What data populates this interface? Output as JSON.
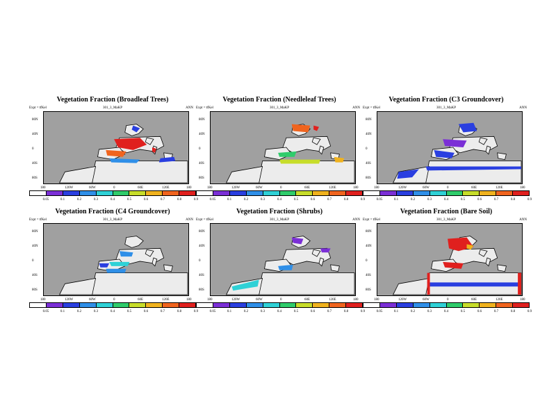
{
  "colors": {
    "ocean": "#a0a0a0",
    "land_zero": "#ececec",
    "coast": "#000000",
    "scale": [
      "#ffffff",
      "#7b2fd6",
      "#2a3fe0",
      "#2f8fe8",
      "#2fd1d6",
      "#2fcc6b",
      "#c7dd2a",
      "#f0b21e",
      "#f0641e",
      "#e0201e"
    ]
  },
  "panels": [
    {
      "title": "Vegetation Fraction (Broadleaf Trees)",
      "meta_left": "Expt = tfKel",
      "meta_mid": "301_3_MaKP",
      "meta_right": "ANN",
      "y_labels": [
        "80N",
        "40N",
        "0",
        "40S",
        "80S"
      ],
      "x_labels": [
        "180",
        "120W",
        "60W",
        "0",
        "60E",
        "120E",
        "180"
      ],
      "colorbar_labels": [
        "0.05",
        "0.1",
        "0.2",
        "0.3",
        "0.4",
        "0.5",
        "0.6",
        "0.7",
        "0.8",
        "0.9"
      ]
    },
    {
      "title": "Vegetation Fraction (Needleleaf Trees)",
      "meta_left": "Expt = tfKel",
      "meta_mid": "301_3_MaKP",
      "meta_right": "ANN",
      "y_labels": [
        "80N",
        "40N",
        "0",
        "40S",
        "80S"
      ],
      "x_labels": [
        "180",
        "120W",
        "60W",
        "0",
        "60E",
        "120E",
        "180"
      ],
      "colorbar_labels": [
        "0.05",
        "0.1",
        "0.2",
        "0.3",
        "0.4",
        "0.5",
        "0.6",
        "0.7",
        "0.8",
        "0.9"
      ]
    },
    {
      "title": "Vegetation Fraction (C3 Groundcover)",
      "meta_left": "Expt = tfKel",
      "meta_mid": "301_3_MaKP",
      "meta_right": "ANN",
      "y_labels": [
        "80N",
        "40N",
        "0",
        "40S",
        "80S"
      ],
      "x_labels": [
        "180",
        "120W",
        "60W",
        "0",
        "60E",
        "120E",
        "180"
      ],
      "colorbar_labels": [
        "0.05",
        "0.1",
        "0.2",
        "0.3",
        "0.4",
        "0.5",
        "0.6",
        "0.7",
        "0.8",
        "0.9"
      ]
    },
    {
      "title": "Vegetation Fraction (C4 Groundcover)",
      "meta_left": "Expt = tfKel",
      "meta_mid": "301_3_MaKP",
      "meta_right": "ANN",
      "y_labels": [
        "80N",
        "40N",
        "0",
        "40S",
        "80S"
      ],
      "x_labels": [
        "180",
        "120W",
        "60W",
        "0",
        "60E",
        "120E",
        "180"
      ],
      "colorbar_labels": [
        "0.05",
        "0.1",
        "0.2",
        "0.3",
        "0.4",
        "0.5",
        "0.6",
        "0.7",
        "0.8",
        "0.9"
      ]
    },
    {
      "title": "Vegetation Fraction (Shrubs)",
      "meta_left": "Expt = tfKel",
      "meta_mid": "301_3_MaKP",
      "meta_right": "ANN",
      "y_labels": [
        "80N",
        "40N",
        "0",
        "40S",
        "80S"
      ],
      "x_labels": [
        "180",
        "120W",
        "60W",
        "0",
        "60E",
        "120E",
        "180"
      ],
      "colorbar_labels": [
        "0.05",
        "0.1",
        "0.2",
        "0.3",
        "0.4",
        "0.5",
        "0.6",
        "0.7",
        "0.8",
        "0.9"
      ]
    },
    {
      "title": "Vegetation Fraction (Bare Soil)",
      "meta_left": "Expt = tfKel",
      "meta_mid": "301_3_MaKP",
      "meta_right": "ANN",
      "y_labels": [
        "80N",
        "40N",
        "0",
        "40S",
        "80S"
      ],
      "x_labels": [
        "180",
        "120W",
        "60W",
        "0",
        "60E",
        "120E",
        "180"
      ],
      "colorbar_labels": [
        "0.05",
        "0.1",
        "0.2",
        "0.3",
        "0.4",
        "0.5",
        "0.6",
        "0.7",
        "0.8",
        "0.9"
      ]
    }
  ]
}
